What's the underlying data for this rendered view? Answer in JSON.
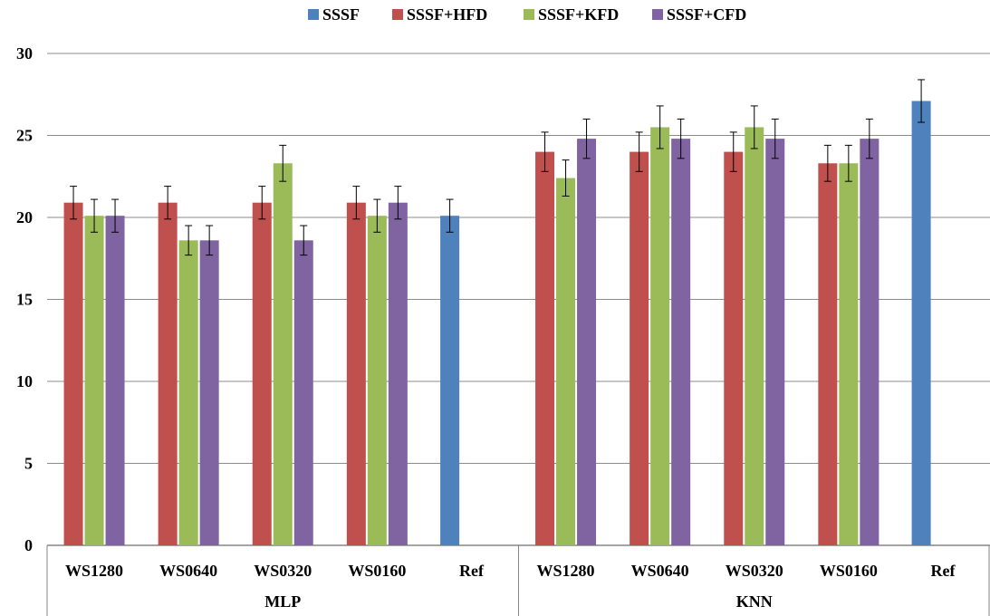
{
  "chart_data": {
    "type": "bar",
    "title": "",
    "xlabel": "",
    "ylabel": "",
    "ylim": [
      0,
      30
    ],
    "yticks": [
      0,
      5,
      10,
      15,
      20,
      25,
      30
    ],
    "grid": true,
    "legend_position": "top",
    "series": [
      {
        "name": "SSSF",
        "color": "#4f81bd"
      },
      {
        "name": "SSSF+HFD",
        "color": "#c0504d"
      },
      {
        "name": "SSSF+KFD",
        "color": "#9bbb59"
      },
      {
        "name": "SSSF+CFD",
        "color": "#8064a2"
      }
    ],
    "groups": [
      {
        "label": "MLP",
        "categories": [
          {
            "label": "WS1280",
            "bars": [
              {
                "series": "SSSF+HFD",
                "value": 20.9,
                "error": 1.0
              },
              {
                "series": "SSSF+KFD",
                "value": 20.1,
                "error": 1.0
              },
              {
                "series": "SSSF+CFD",
                "value": 20.1,
                "error": 1.0
              }
            ]
          },
          {
            "label": "WS0640",
            "bars": [
              {
                "series": "SSSF+HFD",
                "value": 20.9,
                "error": 1.0
              },
              {
                "series": "SSSF+KFD",
                "value": 18.6,
                "error": 0.9
              },
              {
                "series": "SSSF+CFD",
                "value": 18.6,
                "error": 0.9
              }
            ]
          },
          {
            "label": "WS0320",
            "bars": [
              {
                "series": "SSSF+HFD",
                "value": 20.9,
                "error": 1.0
              },
              {
                "series": "SSSF+KFD",
                "value": 23.3,
                "error": 1.1
              },
              {
                "series": "SSSF+CFD",
                "value": 18.6,
                "error": 0.9
              }
            ]
          },
          {
            "label": "WS0160",
            "bars": [
              {
                "series": "SSSF+HFD",
                "value": 20.9,
                "error": 1.0
              },
              {
                "series": "SSSF+KFD",
                "value": 20.1,
                "error": 1.0
              },
              {
                "series": "SSSF+CFD",
                "value": 20.9,
                "error": 1.0
              }
            ]
          },
          {
            "label": "Ref",
            "bars": [
              {
                "series": "SSSF",
                "value": 20.1,
                "error": 1.0
              }
            ]
          }
        ]
      },
      {
        "label": "KNN",
        "categories": [
          {
            "label": "WS1280",
            "bars": [
              {
                "series": "SSSF+HFD",
                "value": 24.0,
                "error": 1.2
              },
              {
                "series": "SSSF+KFD",
                "value": 22.4,
                "error": 1.1
              },
              {
                "series": "SSSF+CFD",
                "value": 24.8,
                "error": 1.2
              }
            ]
          },
          {
            "label": "WS0640",
            "bars": [
              {
                "series": "SSSF+HFD",
                "value": 24.0,
                "error": 1.2
              },
              {
                "series": "SSSF+KFD",
                "value": 25.5,
                "error": 1.3
              },
              {
                "series": "SSSF+CFD",
                "value": 24.8,
                "error": 1.2
              }
            ]
          },
          {
            "label": "WS0320",
            "bars": [
              {
                "series": "SSSF+HFD",
                "value": 24.0,
                "error": 1.2
              },
              {
                "series": "SSSF+KFD",
                "value": 25.5,
                "error": 1.3
              },
              {
                "series": "SSSF+CFD",
                "value": 24.8,
                "error": 1.2
              }
            ]
          },
          {
            "label": "WS0160",
            "bars": [
              {
                "series": "SSSF+HFD",
                "value": 23.3,
                "error": 1.1
              },
              {
                "series": "SSSF+KFD",
                "value": 23.3,
                "error": 1.1
              },
              {
                "series": "SSSF+CFD",
                "value": 24.8,
                "error": 1.2
              }
            ]
          },
          {
            "label": "Ref",
            "bars": [
              {
                "series": "SSSF",
                "value": 27.1,
                "error": 1.3
              }
            ]
          }
        ]
      }
    ]
  }
}
